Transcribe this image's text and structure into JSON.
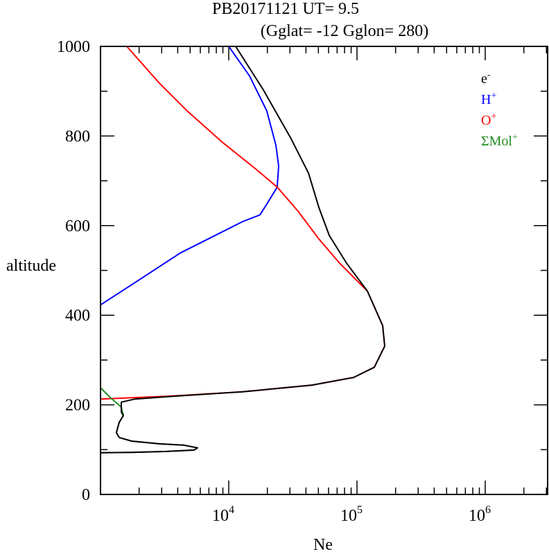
{
  "chart_data": {
    "type": "line",
    "title": "PB20171121   UT=  9.5",
    "subtitle": "(Gglat= -12   Gglon=  280)",
    "xlabel": "Ne",
    "ylabel": "altitude",
    "xscale": "log",
    "xlim_log10": [
      3,
      6.5
    ],
    "ylim": [
      0,
      1000
    ],
    "xtick_labels": [
      {
        "base": "10",
        "exp": "4",
        "log": 4
      },
      {
        "base": "10",
        "exp": "5",
        "log": 5
      },
      {
        "base": "10",
        "exp": "6",
        "log": 6
      }
    ],
    "ytick_labels": [
      "0",
      "200",
      "400",
      "600",
      "800",
      "1000"
    ],
    "legend_position": "top-right",
    "series": [
      {
        "name": "e",
        "sup": "-",
        "color": "#000000",
        "points_log10Ne_alt": [
          [
            4.054,
            1000
          ],
          [
            4.27,
            903
          ],
          [
            4.486,
            794
          ],
          [
            4.622,
            717
          ],
          [
            4.703,
            640
          ],
          [
            4.784,
            578
          ],
          [
            4.919,
            516
          ],
          [
            5.081,
            454
          ],
          [
            5.2,
            377
          ],
          [
            5.216,
            331
          ],
          [
            5.135,
            284
          ],
          [
            4.973,
            261
          ],
          [
            4.649,
            244
          ],
          [
            4.108,
            229
          ],
          [
            3.568,
            219
          ],
          [
            3.27,
            213
          ],
          [
            3.162,
            206
          ],
          [
            3.162,
            184
          ],
          [
            3.178,
            176
          ],
          [
            3.146,
            161
          ],
          [
            3.124,
            138
          ],
          [
            3.146,
            127
          ],
          [
            3.243,
            119
          ],
          [
            3.459,
            113
          ],
          [
            3.649,
            110
          ],
          [
            3.757,
            104
          ],
          [
            3.73,
            99
          ],
          [
            3.514,
            96
          ],
          [
            3.243,
            94
          ],
          [
            3.0,
            93
          ]
        ]
      },
      {
        "name": "H",
        "sup": "+",
        "color": "#0000ff",
        "points_log10Ne_alt": [
          [
            4.0,
            1000
          ],
          [
            4.162,
            934
          ],
          [
            4.297,
            856
          ],
          [
            4.368,
            779
          ],
          [
            4.389,
            733
          ],
          [
            4.378,
            686
          ],
          [
            4.297,
            648
          ],
          [
            4.243,
            624
          ],
          [
            4.108,
            609
          ],
          [
            3.838,
            570
          ],
          [
            3.622,
            539
          ],
          [
            3.297,
            478
          ],
          [
            3.0,
            423
          ]
        ]
      },
      {
        "name": "O",
        "sup": "+",
        "color": "#ff0000",
        "points_log10Ne_alt": [
          [
            3.205,
            1000
          ],
          [
            3.459,
            918
          ],
          [
            3.676,
            856
          ],
          [
            3.946,
            787
          ],
          [
            4.216,
            725
          ],
          [
            4.378,
            686
          ],
          [
            4.541,
            632
          ],
          [
            4.703,
            570
          ],
          [
            4.865,
            516
          ],
          [
            5.081,
            454
          ],
          [
            5.2,
            377
          ],
          [
            5.216,
            331
          ],
          [
            5.135,
            284
          ],
          [
            4.973,
            261
          ],
          [
            4.649,
            244
          ],
          [
            4.108,
            229
          ],
          [
            3.568,
            220
          ],
          [
            3.0,
            213
          ]
        ]
      },
      {
        "name": "ΣMol",
        "sup": "+",
        "color": "#228b22",
        "points_log10Ne_alt": [
          [
            3.0,
            238
          ],
          [
            3.081,
            215
          ],
          [
            3.162,
            195
          ],
          [
            3.178,
            176
          ],
          [
            3.146,
            161
          ],
          [
            3.124,
            138
          ],
          [
            3.146,
            127
          ],
          [
            3.243,
            119
          ],
          [
            3.459,
            113
          ],
          [
            3.649,
            110
          ],
          [
            3.757,
            104
          ],
          [
            3.73,
            99
          ],
          [
            3.514,
            96
          ],
          [
            3.243,
            94
          ],
          [
            3.0,
            93
          ]
        ]
      }
    ]
  }
}
